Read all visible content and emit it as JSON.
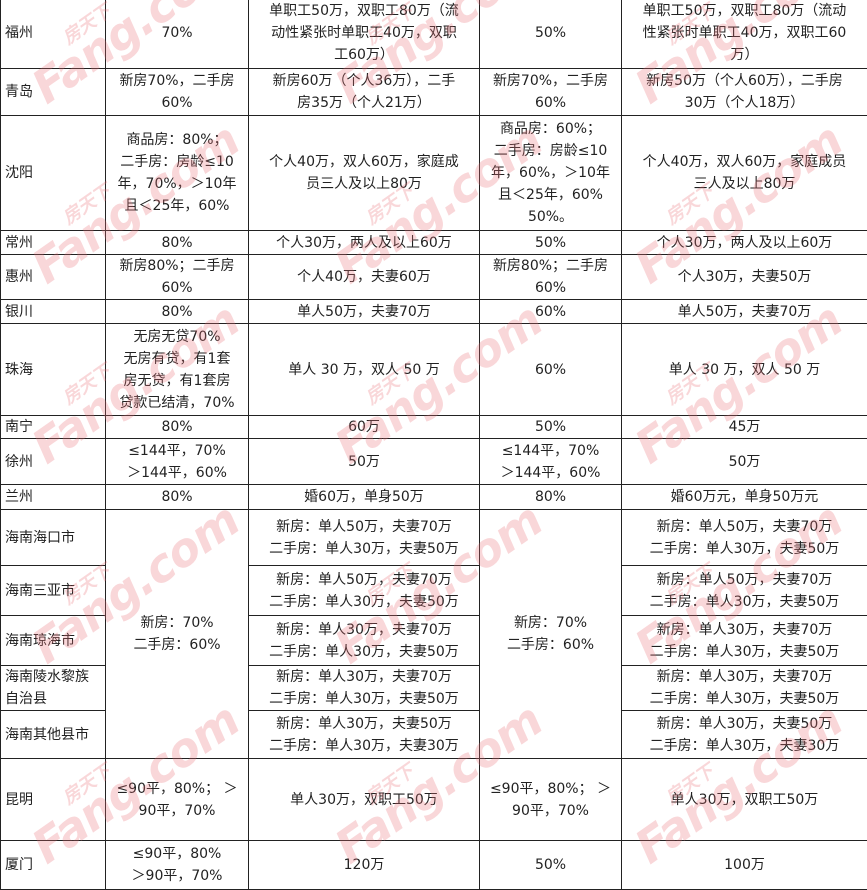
{
  "watermark": {
    "brand": "Fang.com",
    "brand_cn": "房天下",
    "color": "#e86e78"
  },
  "table": {
    "rows": [
      {
        "city": "福州",
        "c1": "70%",
        "c2": "单职工50万，双职工80万（流\n动性紧张时单职工40万，双职\n工60万）",
        "c3": "50%",
        "c4": "单职工50万，双职工80万（流动\n性紧张时单职工40万，双职工60\n万）"
      },
      {
        "city": "青岛",
        "c1": "新房70%，二手房\n60%",
        "c2": "新房60万（个人36万），二手\n房35万（个人21万）",
        "c3": "新房70%，二手房\n60%",
        "c4": "新房50万（个人60万），二手房\n30万（个人18万）"
      },
      {
        "city": "沈阳",
        "c1": "商品房：80%；\n二手房：房龄≤10\n年，70%，＞10年\n且＜25年，60%",
        "c2": "个人40万，双人60万，家庭成\n员三人及以上80万",
        "c3": "商品房：60%；\n二手房：房龄≤10\n年，60%，＞10年\n且＜25年，60%\n50%。",
        "c4": "个人40万，双人60万，家庭成员\n三人及以上80万"
      },
      {
        "city": "常州",
        "c1": "80%",
        "c2": "个人30万，两人及以上60万",
        "c3": "50%",
        "c4": "个人30万，两人及以上60万"
      },
      {
        "city": "惠州",
        "c1": "新房80%；二手房\n60%",
        "c2": "个人40万，夫妻60万",
        "c3": "新房80%；二手房\n60%",
        "c4": "个人30万，夫妻50万"
      },
      {
        "city": "银川",
        "c1": "80%",
        "c2": "单人50万，夫妻70万",
        "c3": "60%",
        "c4": "单人50万，夫妻70万"
      },
      {
        "city": "珠海",
        "c1": "无房无贷70%\n无房有贷，有1套\n房无贷，有1套房\n贷款已结清，70%",
        "c2": "单人 30 万，双人 50 万",
        "c3": "60%",
        "c4": "单人 30 万，双人 50 万"
      },
      {
        "city": "南宁",
        "c1": "80%",
        "c2": "60万",
        "c3": "50%",
        "c4": "45万"
      },
      {
        "city": "徐州",
        "c1": "≤144平，70%\n＞144平，60%",
        "c2": "50万",
        "c3": "≤144平，70%\n＞144平，60%",
        "c4": "50万"
      },
      {
        "city": "兰州",
        "c1": "80%",
        "c2": "婚60万，单身50万",
        "c3": "80%",
        "c4": "婚60万元，单身50万元"
      },
      {
        "city": "海南海口市",
        "c1": "新房：70%\n二手房：60%",
        "c2": "新房：单人50万，夫妻70万\n二手房：单人30万，夫妻50万",
        "c3": "新房：70%\n二手房：60%",
        "c4": "新房：单人50万，夫妻70万\n二手房：单人30万，夫妻50万"
      },
      {
        "city": "海南三亚市",
        "c2": "新房：单人50万，夫妻70万\n二手房：单人30万，夫妻50万",
        "c4": "新房：单人50万，夫妻70万\n二手房：单人30万，夫妻50万"
      },
      {
        "city": "海南琼海市",
        "c2": "新房：单人30万，夫妻70万\n二手房：单人30万，夫妻50万",
        "c4": "新房：单人30万，夫妻70万\n二手房：单人30万，夫妻50万"
      },
      {
        "city": "海南陵水黎族\n自治县",
        "c2": "新房：单人30万，夫妻70万\n二手房：单人30万，夫妻50万",
        "c4": "新房：单人30万，夫妻70万\n二手房：单人30万，夫妻50万"
      },
      {
        "city": "海南其他县市",
        "c2": "新房：单人30万，夫妻50万\n二手房：单人30万，夫妻30万",
        "c4": "新房：单人30万，夫妻50万\n二手房：单人30万，夫妻30万"
      },
      {
        "city": "昆明",
        "c1": "≤90平，80%； ＞\n90平，70%",
        "c2": "单人30万，双职工50万",
        "c3": "≤90平，80%； ＞\n90平，70%",
        "c4": "单人30万，双职工50万"
      },
      {
        "city": "厦门",
        "c1": "≤90平，80%\n＞90平，70%",
        "c2": "120万",
        "c3": "50%",
        "c4": "100万"
      }
    ]
  }
}
